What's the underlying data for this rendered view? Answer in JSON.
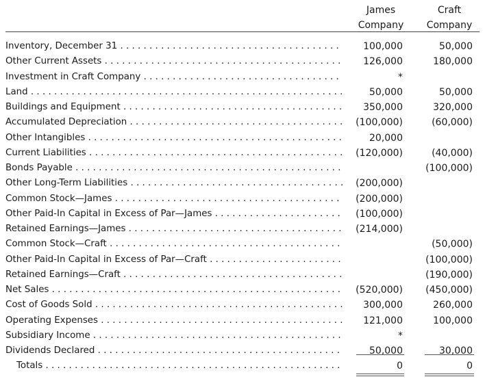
{
  "columns": [
    {
      "line1": "James",
      "line2": "Company"
    },
    {
      "line1": "Craft",
      "line2": "Company"
    }
  ],
  "rows": [
    {
      "label": "Inventory, December 31",
      "james": "100,000",
      "craft": "50,000"
    },
    {
      "label": "Other Current Assets",
      "james": "126,000",
      "craft": "180,000"
    },
    {
      "label": "Investment in Craft Company",
      "james": "*",
      "craft": ""
    },
    {
      "label": "Land",
      "james": "50,000",
      "craft": "50,000"
    },
    {
      "label": "Buildings and Equipment",
      "james": "350,000",
      "craft": "320,000"
    },
    {
      "label": "Accumulated Depreciation",
      "james": "(100,000)",
      "craft": "(60,000)"
    },
    {
      "label": "Other Intangibles",
      "james": "20,000",
      "craft": ""
    },
    {
      "label": "Current Liabilities",
      "james": "(120,000)",
      "craft": "(40,000)"
    },
    {
      "label": "Bonds Payable",
      "james": "",
      "craft": "(100,000)"
    },
    {
      "label": "Other Long-Term Liabilities",
      "james": "(200,000)",
      "craft": ""
    },
    {
      "label": "Common Stock—James",
      "james": "(200,000)",
      "craft": ""
    },
    {
      "label": "Other Paid-In Capital in Excess of Par—James",
      "james": "(100,000)",
      "craft": ""
    },
    {
      "label": "Retained Earnings—James",
      "james": "(214,000)",
      "craft": ""
    },
    {
      "label": "Common Stock—Craft",
      "james": "",
      "craft": "(50,000)"
    },
    {
      "label": "Other Paid-In Capital in Excess of Par—Craft",
      "james": "",
      "craft": "(100,000)"
    },
    {
      "label": "Retained Earnings—Craft",
      "james": "",
      "craft": "(190,000)"
    },
    {
      "label": "Net Sales",
      "james": "(520,000)",
      "craft": "(450,000)"
    },
    {
      "label": "Cost of Goods Sold",
      "james": "300,000",
      "craft": "260,000"
    },
    {
      "label": "Operating Expenses",
      "james": "121,000",
      "craft": "100,000"
    },
    {
      "label": "Subsidiary Income",
      "james": "*",
      "craft": ""
    },
    {
      "label": "Dividends Declared",
      "james": "50,000",
      "craft": "30,000"
    }
  ],
  "totals": {
    "label": "Totals",
    "james": "0",
    "craft": "0"
  }
}
